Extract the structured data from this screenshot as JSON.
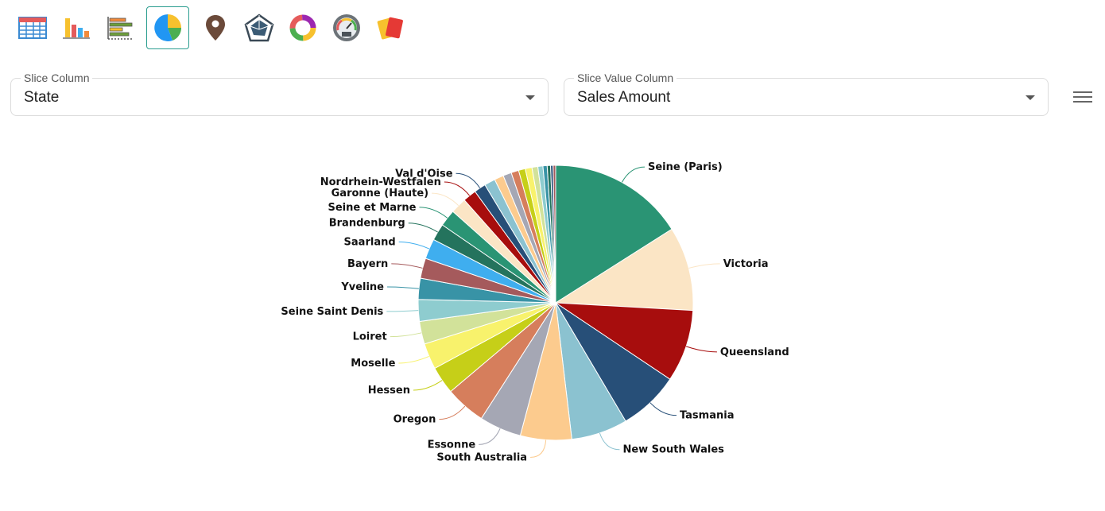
{
  "toolbar": {
    "buttons": [
      {
        "icon": "table-icon",
        "active": false
      },
      {
        "icon": "bar-chart-icon",
        "active": false
      },
      {
        "icon": "horizontal-bar-chart-icon",
        "active": false
      },
      {
        "icon": "pie-chart-icon",
        "active": true
      },
      {
        "icon": "map-pin-icon",
        "active": false
      },
      {
        "icon": "radar-chart-icon",
        "active": false
      },
      {
        "icon": "donut-chart-icon",
        "active": false
      },
      {
        "icon": "kpi-gauge-icon",
        "active": false
      },
      {
        "icon": "cards-icon",
        "active": false
      }
    ]
  },
  "slice_column": {
    "label": "Slice Column",
    "value": "State"
  },
  "value_column": {
    "label": "Slice Value Column",
    "value": "Sales Amount"
  },
  "colors": {
    "accent": "#2a9d8f"
  },
  "chart_data": {
    "type": "pie",
    "slices": [
      {
        "label": "Seine (Paris)",
        "value": 16.2,
        "color": "#2a9474"
      },
      {
        "label": "Victoria",
        "value": 10.0,
        "color": "#fbe5c5"
      },
      {
        "label": "Queensland",
        "value": 8.6,
        "color": "#a70d0d"
      },
      {
        "label": "Tasmania",
        "value": 7.2,
        "color": "#274f78"
      },
      {
        "label": "New South Wales",
        "value": 6.7,
        "color": "#8bc2d0"
      },
      {
        "label": "South Australia",
        "value": 6.1,
        "color": "#fccb8e"
      },
      {
        "label": "Essonne",
        "value": 5.0,
        "color": "#a5a7b4"
      },
      {
        "label": "Oregon",
        "value": 4.8,
        "color": "#d67e5c"
      },
      {
        "label": "Hessen",
        "value": 3.3,
        "color": "#c6cf18"
      },
      {
        "label": "Moselle",
        "value": 3.1,
        "color": "#f8f26c"
      },
      {
        "label": "Loiret",
        "value": 2.7,
        "color": "#d2e29a"
      },
      {
        "label": "Seine Saint Denis",
        "value": 2.6,
        "color": "#8ecccf"
      },
      {
        "label": "Yveline",
        "value": 2.5,
        "color": "#3893a6"
      },
      {
        "label": "Bayern",
        "value": 2.4,
        "color": "#a55a5c"
      },
      {
        "label": "Saarland",
        "value": 2.4,
        "color": "#3faeef"
      },
      {
        "label": "Brandenburg",
        "value": 2.0,
        "color": "#24735d"
      },
      {
        "label": "Seine et Marne",
        "value": 2.0,
        "color": "#2a9474"
      },
      {
        "label": "Garonne (Haute)",
        "value": 1.9,
        "color": "#fbe5c5"
      },
      {
        "label": "Nordrhein-Westfalen",
        "value": 1.6,
        "color": "#a70d0d"
      },
      {
        "label": "Val d'Oise",
        "value": 1.4,
        "color": "#274f78"
      },
      {
        "label": "",
        "value": 1.3,
        "color": "#8bc2d0"
      },
      {
        "label": "",
        "value": 1.1,
        "color": "#fccb8e"
      },
      {
        "label": "",
        "value": 1.0,
        "color": "#a5a7b4"
      },
      {
        "label": "",
        "value": 0.9,
        "color": "#d67e5c"
      },
      {
        "label": "",
        "value": 0.8,
        "color": "#c6cf18"
      },
      {
        "label": "",
        "value": 0.8,
        "color": "#f8f26c"
      },
      {
        "label": "",
        "value": 0.7,
        "color": "#d2e29a"
      },
      {
        "label": "",
        "value": 0.6,
        "color": "#8ecccf"
      },
      {
        "label": "",
        "value": 0.5,
        "color": "#3893a6"
      },
      {
        "label": "",
        "value": 0.4,
        "color": "#24735d"
      },
      {
        "label": "",
        "value": 0.3,
        "color": "#274f78"
      },
      {
        "label": "",
        "value": 0.3,
        "color": "#a55a5c"
      }
    ]
  }
}
